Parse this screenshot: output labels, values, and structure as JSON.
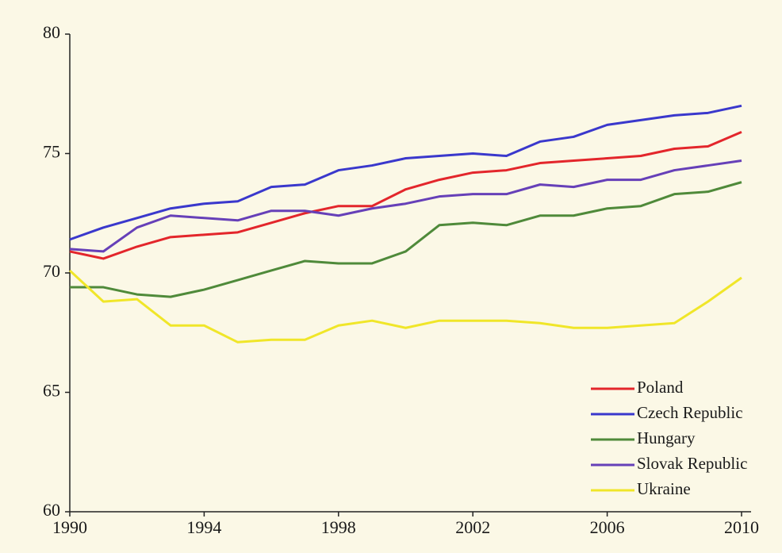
{
  "chart_data": {
    "type": "line",
    "x": [
      1990,
      1991,
      1992,
      1993,
      1994,
      1995,
      1996,
      1997,
      1998,
      1999,
      2000,
      2001,
      2002,
      2003,
      2004,
      2005,
      2006,
      2007,
      2008,
      2009,
      2010
    ],
    "series": [
      {
        "name": "Poland",
        "color": "#e3262b",
        "values": [
          70.9,
          70.6,
          71.1,
          71.5,
          71.6,
          71.7,
          72.1,
          72.5,
          72.8,
          72.8,
          73.5,
          73.9,
          74.2,
          74.3,
          74.6,
          74.7,
          74.8,
          74.9,
          75.2,
          75.3,
          75.9
        ]
      },
      {
        "name": "Czech Republic",
        "color": "#3a38cc",
        "values": [
          71.4,
          71.9,
          72.3,
          72.7,
          72.9,
          73.0,
          73.6,
          73.7,
          74.3,
          74.5,
          74.8,
          74.9,
          75.0,
          74.9,
          75.5,
          75.7,
          76.2,
          76.4,
          76.6,
          76.7,
          77.0
        ]
      },
      {
        "name": "Hungary",
        "color": "#4f8a3a",
        "values": [
          69.4,
          69.4,
          69.1,
          69.0,
          69.3,
          69.7,
          70.1,
          70.5,
          70.4,
          70.4,
          70.9,
          72.0,
          72.1,
          72.0,
          72.4,
          72.4,
          72.7,
          72.8,
          73.3,
          73.4,
          73.8
        ]
      },
      {
        "name": "Slovak Republic",
        "color": "#6640b8",
        "values": [
          71.0,
          70.9,
          71.9,
          72.4,
          72.3,
          72.2,
          72.6,
          72.6,
          72.4,
          72.7,
          72.9,
          73.2,
          73.3,
          73.3,
          73.7,
          73.6,
          73.9,
          73.9,
          74.3,
          74.5,
          74.7
        ]
      },
      {
        "name": "Ukraine",
        "color": "#f0e629",
        "values": [
          70.1,
          68.8,
          68.9,
          67.8,
          67.8,
          67.1,
          67.2,
          67.2,
          67.8,
          68.0,
          67.7,
          68.0,
          68.0,
          68.0,
          67.9,
          67.7,
          67.7,
          67.8,
          67.9,
          68.8,
          69.8
        ]
      }
    ],
    "xlim": [
      1990,
      2010
    ],
    "xticks": [
      1990,
      1994,
      1998,
      2002,
      2006,
      2010
    ],
    "ylim": [
      60,
      80
    ],
    "yticks": [
      60,
      65,
      70,
      75,
      80
    ],
    "legend": "lower right"
  }
}
